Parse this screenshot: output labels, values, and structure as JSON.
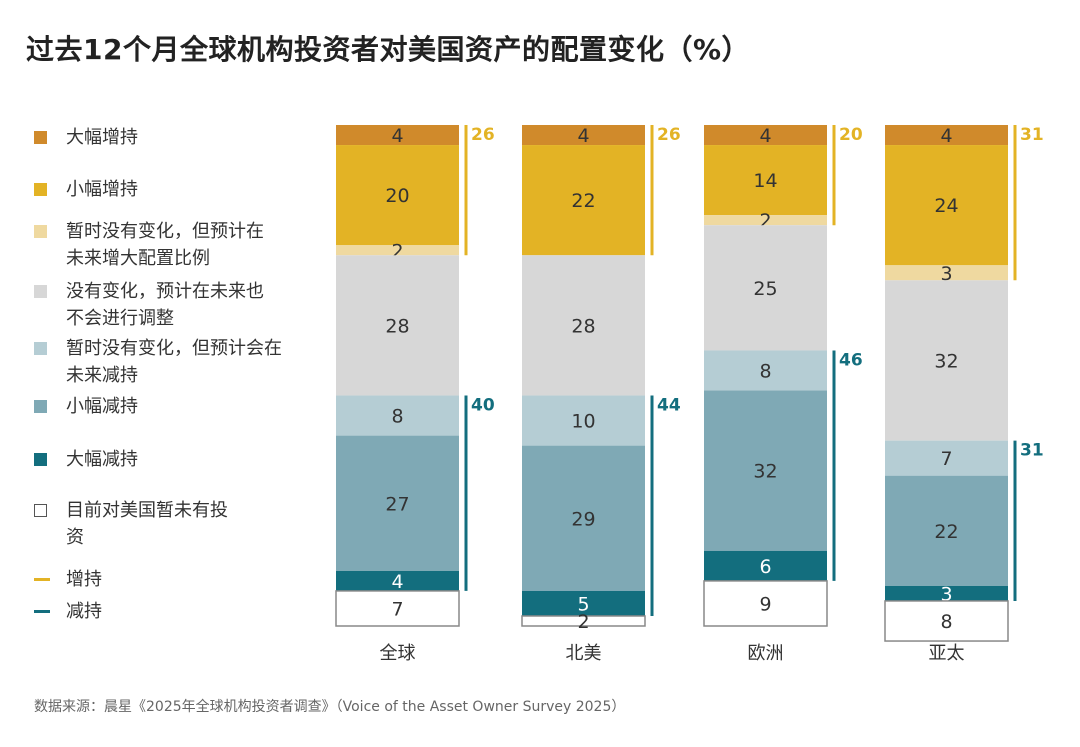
{
  "title": "过去12个月全球机构投资者对美国资产的配置变化（%）",
  "source": "数据来源：晨星《2025年全球机构投资者调查》（Voice of the Asset Owner Survey 2025）",
  "legend": [
    {
      "label": "大幅增持",
      "color": "#D08A2B",
      "kind": "box"
    },
    {
      "label": "小幅增持",
      "color": "#E3B325",
      "kind": "box"
    },
    {
      "label": "暂时没有变化，但预计在\n未来增大配置比例",
      "color": "#EFD9A0",
      "kind": "box"
    },
    {
      "label": "没有变化，预计在未来也\n 不会进行调整",
      "color": "#D7D7D7",
      "kind": "box"
    },
    {
      "label": "暂时没有变化，但预计会在\n未来减持",
      "color": "#B5CDD4",
      "kind": "box"
    },
    {
      "label": "小幅减持",
      "color": "#7FA9B5",
      "kind": "box"
    },
    {
      "label": "大幅减持",
      "color": "#136E7E",
      "kind": "box"
    },
    {
      "label": "目前对美国暂未有投\n资",
      "color": "#ffffff",
      "kind": "outline"
    },
    {
      "label": "增持",
      "color": "#E3B325",
      "kind": "line"
    },
    {
      "label": "减持",
      "color": "#136E7E",
      "kind": "line"
    }
  ],
  "chart_data": {
    "type": "bar",
    "stacked": true,
    "categories": [
      "全球",
      "北美",
      "欧洲",
      "亚太"
    ],
    "series": [
      {
        "name": "大幅增持",
        "color": "#D08A2B",
        "values": [
          4,
          4,
          4,
          4
        ]
      },
      {
        "name": "小幅增持",
        "color": "#E3B325",
        "values": [
          20,
          22,
          14,
          24
        ]
      },
      {
        "name": "暂时没有变化，但预计在未来增大配置比例",
        "color": "#EFD9A0",
        "values": [
          2,
          0,
          2,
          3
        ]
      },
      {
        "name": "没有变化，预计在未来也不会进行调整",
        "color": "#D7D7D7",
        "values": [
          28,
          28,
          25,
          32
        ]
      },
      {
        "name": "暂时没有变化，但预计会在未来减持",
        "color": "#B5CDD4",
        "values": [
          8,
          10,
          8,
          7
        ]
      },
      {
        "name": "小幅减持",
        "color": "#7FA9B5",
        "values": [
          27,
          29,
          32,
          22
        ]
      },
      {
        "name": "大幅减持",
        "color": "#136E7E",
        "values": [
          4,
          5,
          6,
          3
        ]
      },
      {
        "name": "目前对美国暂未有投资",
        "color": "#ffffff",
        "values": [
          7,
          2,
          9,
          8
        ]
      }
    ],
    "increase_totals": [
      26,
      26,
      20,
      31
    ],
    "decrease_totals": [
      40,
      44,
      46,
      31
    ],
    "increase_color": "#E3B325",
    "decrease_color": "#136E7E",
    "ylim": [
      0,
      100
    ],
    "title": "过去12个月全球机构投资者对美国资产的配置变化（%）"
  }
}
